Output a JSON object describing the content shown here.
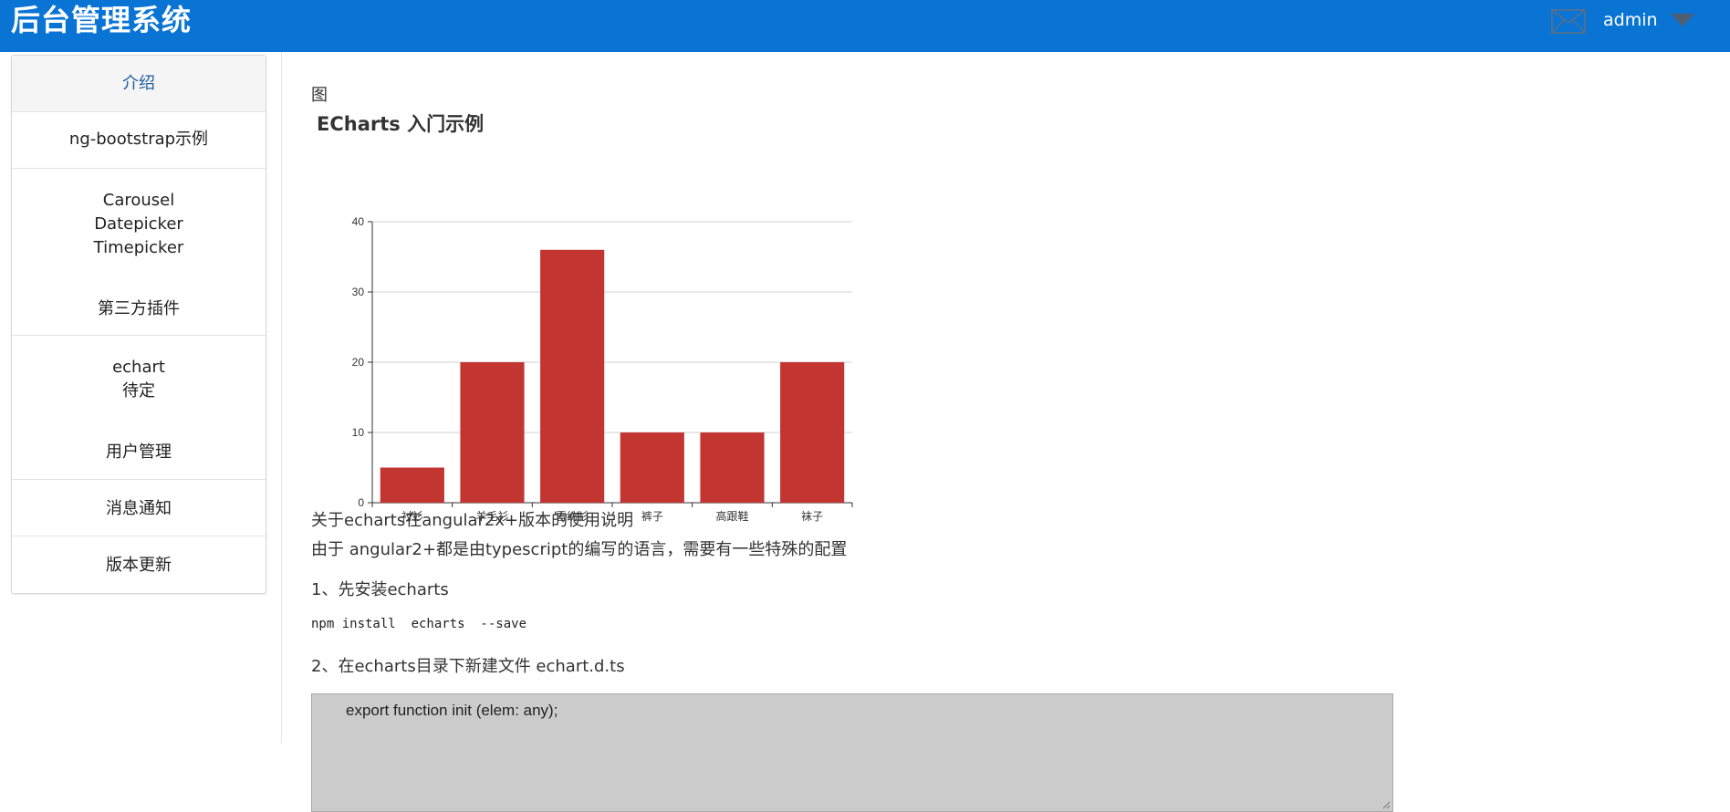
{
  "header": {
    "title": "后台管理系统",
    "user": "admin",
    "mail_icon": "mail-icon",
    "dropdown_icon": "caret-down-icon",
    "accent": "#0a74d4"
  },
  "sidebar": {
    "items": [
      {
        "lines": [
          "介绍"
        ],
        "active": true
      },
      {
        "lines": [
          "ng-bootstrap示例"
        ]
      },
      {
        "lines": [
          "Carousel",
          "Datepicker",
          "Timepicker"
        ]
      },
      {
        "lines": [
          "第三方插件"
        ]
      },
      {
        "lines": [
          "echart",
          "待定"
        ]
      },
      {
        "lines": [
          "用户管理"
        ]
      },
      {
        "lines": [
          "消息通知"
        ]
      },
      {
        "lines": [
          "版本更新"
        ]
      }
    ]
  },
  "main": {
    "breadcrumb": "图",
    "chart_title": "ECharts 入门示例",
    "para1": "关于echarts在angular2x+版本的使用说明",
    "para2": "由于 angular2+都是由typescript的编写的语言，需要有一些特殊的配置",
    "step1": "1、先安装echarts",
    "command": "npm install  echarts  --save",
    "step2": "2、在echarts目录下新建文件 echart.d.ts",
    "code": "export function init (elem: any);"
  },
  "chart_data": {
    "type": "bar",
    "title": "ECharts 入门示例",
    "categories": [
      "衬衫",
      "羊毛衫",
      "雪纺衫",
      "裤子",
      "高跟鞋",
      "袜子"
    ],
    "series": [
      {
        "values": [
          5,
          20,
          36,
          10,
          10,
          20
        ]
      }
    ],
    "ylim": [
      0,
      40
    ],
    "yticks": [
      0,
      10,
      20,
      30,
      40
    ],
    "grid": true,
    "bar_color": "#c23531"
  }
}
